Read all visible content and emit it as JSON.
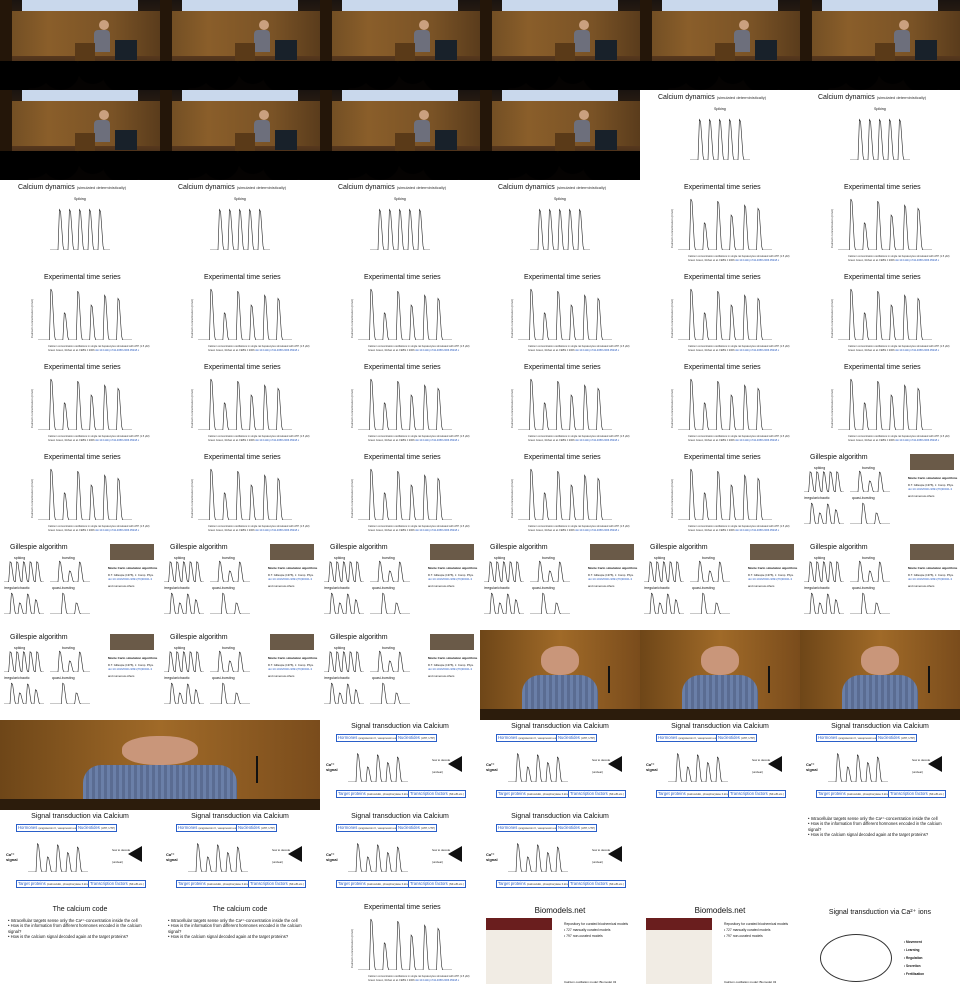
{
  "slide_text": {
    "calcium": {
      "title": "Calcium dynamics",
      "subtitle": "(simulated deterministically)",
      "panel": "Spiking"
    },
    "experimental": {
      "title": "Experimental time series",
      "ylabel": "Calcium concentration (nmol)",
      "caption": "Calcium concentration oscillations in single rat hepatocytes stimulated with ATP (1.5 μM)",
      "caption2": "Green Green, Rohan et al. FEBS J 2006",
      "link": "doi:10.1111/j.1742-4658.2006.05218.x"
    },
    "gillespie": {
      "title": "Gillespie algorithm",
      "panels": [
        "spiking",
        "bursting",
        "irregular/chaotic",
        "quasi-bursting"
      ],
      "side_title": "Monte Carlo simulation algorithms",
      "ref": "D.T. Gillespie (1976), J. Comp. Phys.",
      "ref_link": "doi:10.1016/0021-9991(76)90041-3",
      "note": "and numerous others"
    },
    "signal": {
      "title": "Signal transduction via Calcium",
      "hormones": "Hormones",
      "hormones_sub": "(angiotensin II, vasopressin etc.)",
      "nucleotides": "Nucleotides",
      "nucleotides_sub": "(ATP, UTP)",
      "ca_signal": "Ca²⁺ signal",
      "how": "how to decode",
      "decode_note": "(unclear)",
      "targets": "Target proteins",
      "targets_sub": "(calmodulin, phosphorylase b kinase, etc.)",
      "tf": "Transcription factors",
      "tf_sub": "(NF-κB etc.)"
    },
    "calcium_code": {
      "title": "The calcium code",
      "bullets": [
        "Intracellular targets sense only the Ca²⁺-concentration inside the cell",
        "How is the information from different hormones encoded in the calcium signal?",
        "How is the calcium signal decoded again at the target proteins?"
      ]
    },
    "biomodels": {
      "title": "Biomodels.net",
      "lines": [
        "Repository for curated biochemical models",
        "• 727 manually curated models",
        "• 797 non-curated models"
      ],
      "footer": "Calcium oscillation model: Biomodel 43"
    },
    "ions": {
      "title": "Signal transduction via Ca²⁺ ions",
      "items": [
        "Movement",
        "Learning",
        "Regulation",
        "Secretion",
        "Fertilisation"
      ]
    }
  },
  "frames": [
    {
      "type": "stage"
    },
    {
      "type": "stage"
    },
    {
      "type": "stage"
    },
    {
      "type": "stage"
    },
    {
      "type": "stage"
    },
    {
      "type": "stage"
    },
    {
      "type": "stage"
    },
    {
      "type": "stage"
    },
    {
      "type": "stage"
    },
    {
      "type": "stage"
    },
    {
      "type": "calcium"
    },
    {
      "type": "calcium"
    },
    {
      "type": "calcium"
    },
    {
      "type": "calcium"
    },
    {
      "type": "calcium"
    },
    {
      "type": "calcium"
    },
    {
      "type": "experimental"
    },
    {
      "type": "experimental"
    },
    {
      "type": "experimental"
    },
    {
      "type": "experimental"
    },
    {
      "type": "experimental"
    },
    {
      "type": "experimental"
    },
    {
      "type": "experimental"
    },
    {
      "type": "experimental"
    },
    {
      "type": "experimental"
    },
    {
      "type": "experimental"
    },
    {
      "type": "experimental"
    },
    {
      "type": "experimental"
    },
    {
      "type": "experimental"
    },
    {
      "type": "experimental"
    },
    {
      "type": "experimental"
    },
    {
      "type": "experimental"
    },
    {
      "type": "experimental"
    },
    {
      "type": "experimental"
    },
    {
      "type": "experimental"
    },
    {
      "type": "gillespie"
    },
    {
      "type": "gillespie"
    },
    {
      "type": "gillespie"
    },
    {
      "type": "gillespie"
    },
    {
      "type": "gillespie"
    },
    {
      "type": "gillespie"
    },
    {
      "type": "gillespie"
    },
    {
      "type": "gillespie"
    },
    {
      "type": "gillespie"
    },
    {
      "type": "gillespie"
    },
    {
      "type": "closeup"
    },
    {
      "type": "closeup"
    },
    {
      "type": "closeup"
    },
    {
      "type": "closeup-big"
    },
    {
      "type": "signal"
    },
    {
      "type": "signal"
    },
    {
      "type": "signal"
    },
    {
      "type": "signal"
    },
    {
      "type": "signal"
    },
    {
      "type": "signal"
    },
    {
      "type": "signal"
    },
    {
      "type": "signal"
    },
    {
      "type": "code"
    },
    {
      "type": "code"
    },
    {
      "type": "code"
    },
    {
      "type": "experimental"
    },
    {
      "type": "biomodels"
    },
    {
      "type": "biomodels"
    },
    {
      "type": "ions"
    }
  ],
  "colors": {
    "accent": "#2a5fc9",
    "stage_wall": "#8a5e2a",
    "ink": "#111111"
  }
}
